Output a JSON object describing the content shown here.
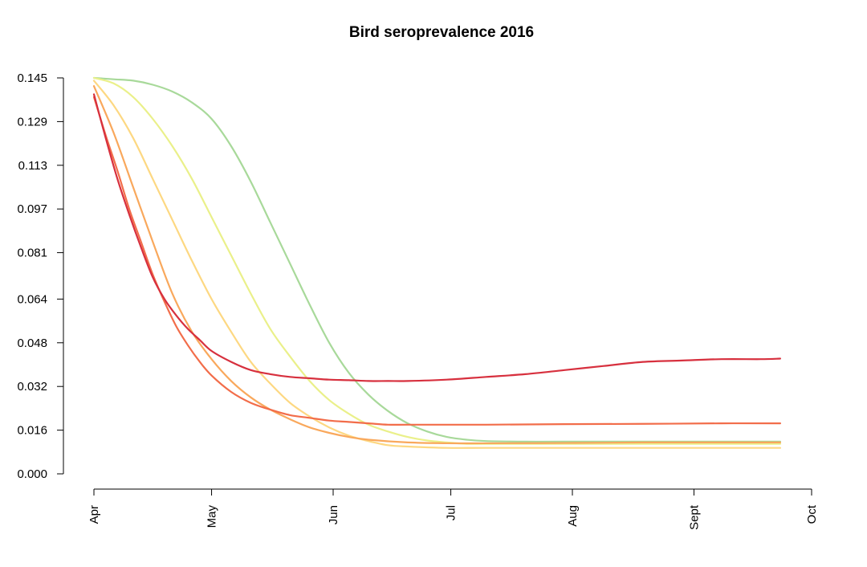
{
  "chart_data": {
    "type": "line",
    "title": "Bird seroprevalence 2016",
    "xlabel": "",
    "ylabel": "",
    "x_tick_labels": [
      "Apr",
      "May",
      "Jun",
      "Jul",
      "Aug",
      "Sept",
      "Oct"
    ],
    "x_tick_days": [
      0,
      30,
      61,
      91,
      122,
      153,
      183
    ],
    "y_ticks": [
      0.0,
      0.016,
      0.032,
      0.048,
      0.064,
      0.081,
      0.097,
      0.113,
      0.129,
      0.145
    ],
    "y_tick_labels": [
      "0.000",
      "0.016",
      "0.032",
      "0.048",
      "0.064",
      "0.081",
      "0.097",
      "0.113",
      "0.129",
      "0.145"
    ],
    "ylim": [
      0,
      0.145
    ],
    "grid": false,
    "legend": "none",
    "series": [
      {
        "color": "#d7303e",
        "x": [
          0,
          3,
          6,
          9,
          12,
          15,
          18,
          21,
          24,
          27,
          30,
          35,
          40,
          45,
          50,
          55,
          60,
          65,
          70,
          75,
          80,
          90,
          100,
          110,
          120,
          130,
          140,
          150,
          160,
          170,
          175
        ],
        "y": [
          0.139,
          0.123,
          0.108,
          0.095,
          0.083,
          0.072,
          0.064,
          0.058,
          0.053,
          0.049,
          0.045,
          0.041,
          0.038,
          0.0365,
          0.0355,
          0.035,
          0.0345,
          0.0343,
          0.034,
          0.034,
          0.034,
          0.0345,
          0.0355,
          0.0365,
          0.038,
          0.0395,
          0.041,
          0.0415,
          0.042,
          0.042,
          0.0422
        ]
      },
      {
        "color": "#f26d4a",
        "x": [
          0,
          3,
          6,
          9,
          12,
          15,
          18,
          21,
          24,
          27,
          30,
          35,
          40,
          45,
          50,
          55,
          60,
          65,
          70,
          75,
          80,
          90,
          100,
          120,
          140,
          160,
          175
        ],
        "y": [
          0.138,
          0.124,
          0.111,
          0.097,
          0.085,
          0.073,
          0.063,
          0.054,
          0.047,
          0.041,
          0.036,
          0.03,
          0.026,
          0.0235,
          0.0215,
          0.0205,
          0.0195,
          0.019,
          0.0185,
          0.018,
          0.018,
          0.018,
          0.018,
          0.0182,
          0.0183,
          0.0185,
          0.0185
        ]
      },
      {
        "color": "#f9a85c",
        "x": [
          0,
          5,
          10,
          15,
          20,
          25,
          30,
          35,
          40,
          45,
          50,
          55,
          60,
          65,
          70,
          80,
          90,
          100,
          120,
          140,
          160,
          175
        ],
        "y": [
          0.142,
          0.125,
          0.105,
          0.085,
          0.066,
          0.052,
          0.042,
          0.034,
          0.028,
          0.0235,
          0.02,
          0.017,
          0.015,
          0.0135,
          0.0125,
          0.0115,
          0.0112,
          0.0112,
          0.0113,
          0.0115,
          0.0115,
          0.0115
        ]
      },
      {
        "color": "#fdd882",
        "x": [
          0,
          5,
          10,
          15,
          20,
          25,
          30,
          35,
          40,
          45,
          50,
          55,
          60,
          65,
          70,
          75,
          80,
          90,
          100,
          120,
          140,
          160,
          175
        ],
        "y": [
          0.144,
          0.135,
          0.123,
          0.108,
          0.093,
          0.078,
          0.064,
          0.052,
          0.041,
          0.033,
          0.026,
          0.021,
          0.017,
          0.014,
          0.012,
          0.0105,
          0.01,
          0.0095,
          0.0095,
          0.0095,
          0.0095,
          0.0095,
          0.0095
        ]
      },
      {
        "color": "#eaf08a",
        "x": [
          0,
          5,
          10,
          15,
          20,
          25,
          30,
          35,
          40,
          45,
          50,
          55,
          60,
          65,
          70,
          75,
          80,
          85,
          90,
          95,
          100,
          110,
          120,
          140,
          160,
          175
        ],
        "y": [
          0.145,
          0.143,
          0.138,
          0.13,
          0.12,
          0.108,
          0.094,
          0.08,
          0.066,
          0.053,
          0.043,
          0.034,
          0.027,
          0.022,
          0.018,
          0.0155,
          0.0135,
          0.0122,
          0.0115,
          0.011,
          0.011,
          0.011,
          0.011,
          0.011,
          0.011,
          0.011
        ]
      },
      {
        "color": "#a8d99a",
        "x": [
          0,
          5,
          10,
          15,
          20,
          25,
          30,
          35,
          40,
          45,
          50,
          55,
          60,
          65,
          70,
          75,
          80,
          85,
          90,
          95,
          100,
          110,
          120,
          140,
          160,
          175
        ],
        "y": [
          0.145,
          0.1445,
          0.144,
          0.1425,
          0.14,
          0.136,
          0.13,
          0.12,
          0.107,
          0.092,
          0.077,
          0.062,
          0.048,
          0.037,
          0.029,
          0.023,
          0.0185,
          0.0155,
          0.0135,
          0.0125,
          0.012,
          0.0118,
          0.0118,
          0.0118,
          0.0118,
          0.0118
        ]
      }
    ]
  }
}
